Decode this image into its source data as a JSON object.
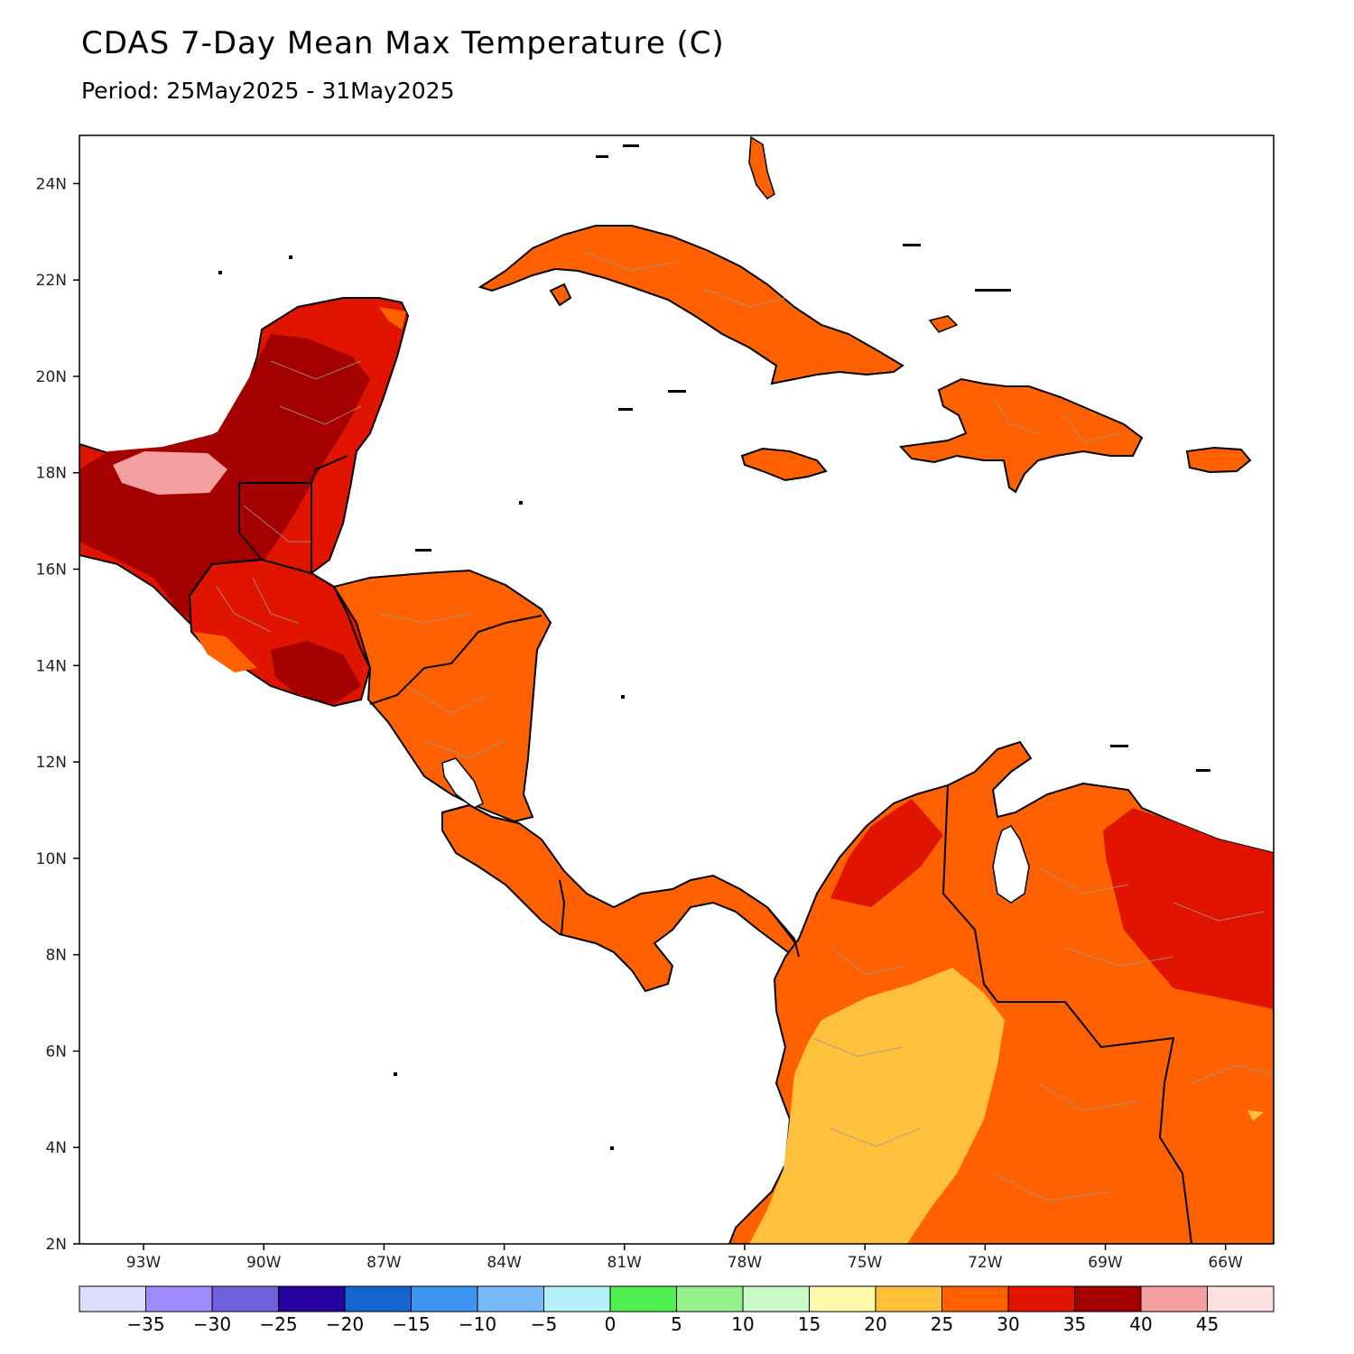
{
  "title": "CDAS 7-Day Mean Max Temperature (C)",
  "subtitle": "Period: 25May2025 - 31May2025",
  "map": {
    "lat_range": [
      2,
      25
    ],
    "lon_range": [
      -94.6,
      -64.8
    ],
    "lat_ticks": [
      {
        "value": 24,
        "label": "24N"
      },
      {
        "value": 22,
        "label": "22N"
      },
      {
        "value": 20,
        "label": "20N"
      },
      {
        "value": 18,
        "label": "18N"
      },
      {
        "value": 16,
        "label": "16N"
      },
      {
        "value": 14,
        "label": "14N"
      },
      {
        "value": 12,
        "label": "12N"
      },
      {
        "value": 10,
        "label": "10N"
      },
      {
        "value": 8,
        "label": "8N"
      },
      {
        "value": 6,
        "label": "6N"
      },
      {
        "value": 4,
        "label": "4N"
      },
      {
        "value": 2,
        "label": "2N"
      }
    ],
    "lon_ticks": [
      {
        "value": -93,
        "label": "93W"
      },
      {
        "value": -90,
        "label": "90W"
      },
      {
        "value": -87,
        "label": "87W"
      },
      {
        "value": -84,
        "label": "84W"
      },
      {
        "value": -81,
        "label": "81W"
      },
      {
        "value": -78,
        "label": "78W"
      },
      {
        "value": -75,
        "label": "75W"
      },
      {
        "value": -72,
        "label": "72W"
      },
      {
        "value": -69,
        "label": "69W"
      },
      {
        "value": -66,
        "label": "66W"
      }
    ]
  },
  "colorbar": {
    "colors": [
      "#dcdcff",
      "#a08cff",
      "#7060dc",
      "#2800a0",
      "#1464d2",
      "#3c96f0",
      "#78b9fa",
      "#b4f0fa",
      "#50f050",
      "#96f08c",
      "#c8fac8",
      "#fffaaa",
      "#ffc03c",
      "#ff6000",
      "#e11400",
      "#a50000",
      "#f4a0a0",
      "#fde0e0"
    ],
    "labels": [
      "-35",
      "-30",
      "-25",
      "-20",
      "-15",
      "-10",
      "-5",
      "0",
      "5",
      "10",
      "15",
      "20",
      "25",
      "30",
      "35",
      "40",
      "45"
    ]
  },
  "legend_colors": {
    "t25": "#ffc03c",
    "t30": "#ff6000",
    "t35": "#e11400",
    "t40": "#a50000",
    "t45": "#f4a0a0"
  }
}
